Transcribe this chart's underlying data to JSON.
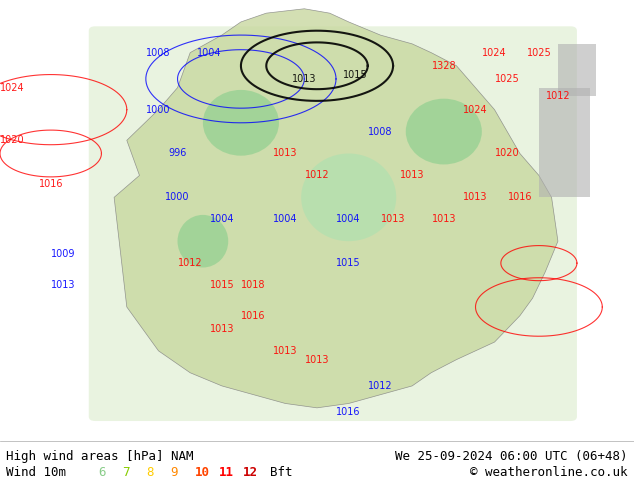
{
  "title_left": "High wind areas [hPa] NAM",
  "title_right": "We 25-09-2024 06:00 UTC (06+48)",
  "subtitle_left": "Wind 10m",
  "subtitle_right": "© weatheronline.co.uk",
  "legend_labels": [
    "6",
    "7",
    "8",
    "9",
    "10",
    "11",
    "12",
    "Bft"
  ],
  "legend_colors": [
    "#aaffaa",
    "#88dd44",
    "#ffdd00",
    "#ff8800",
    "#ff4400",
    "#ff0000",
    "#cc0000",
    "#000000"
  ],
  "bg_color": "#c8d8e8",
  "map_bg": "#c8c8a0",
  "border_color": "#000000",
  "fig_width": 6.34,
  "fig_height": 4.9,
  "dpi": 100,
  "bottom_bar_color": "#ffffff",
  "bottom_bar_height": 0.1,
  "title_fontsize": 9,
  "legend_fontsize": 9
}
